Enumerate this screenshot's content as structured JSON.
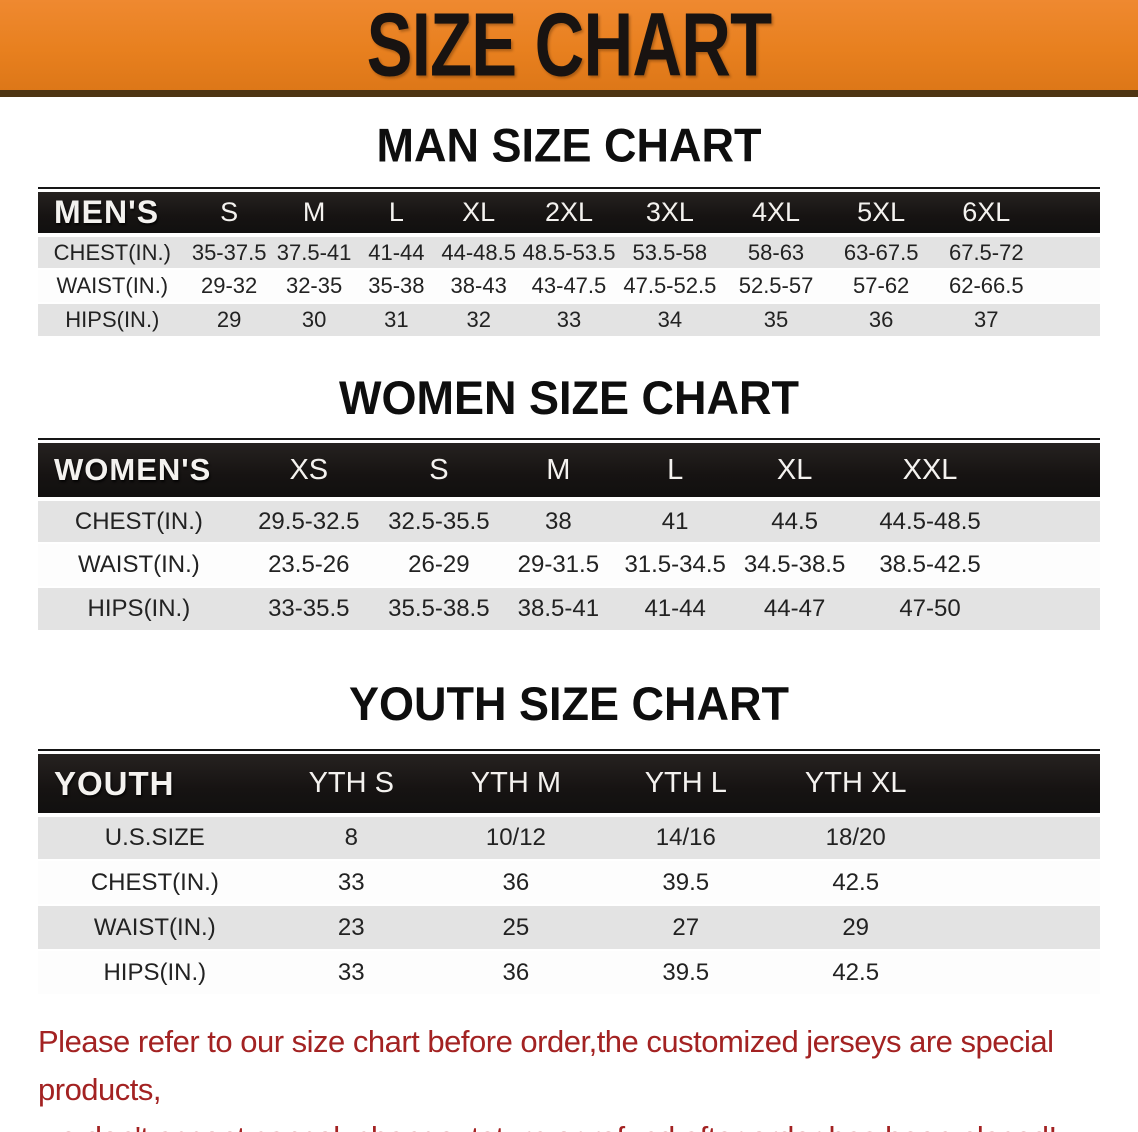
{
  "banner": {
    "title": "SIZE CHART",
    "bg_color": "#e8801f",
    "text_color": "#181311"
  },
  "sections": [
    {
      "heading": "MAN SIZE CHART",
      "header_label": "MEN'S",
      "columns": [
        "S",
        "M",
        "L",
        "XL",
        "2XL",
        "3XL",
        "4XL",
        "5XL",
        "6XL"
      ],
      "rows": [
        {
          "label": "CHEST(IN.)",
          "values": [
            "35-37.5",
            "37.5-41",
            "41-44",
            "44-48.5",
            "48.5-53.5",
            "53.5-58",
            "58-63",
            "63-67.5",
            "67.5-72"
          ]
        },
        {
          "label": "WAIST(IN.)",
          "values": [
            "29-32",
            "32-35",
            "35-38",
            "38-43",
            "43-47.5",
            "47.5-52.5",
            "52.5-57",
            "57-62",
            "62-66.5"
          ]
        },
        {
          "label": "HIPS(IN.)",
          "values": [
            "29",
            "30",
            "31",
            "32",
            "33",
            "34",
            "35",
            "36",
            "37"
          ]
        }
      ]
    },
    {
      "heading": "WOMEN SIZE CHART",
      "header_label": "WOMEN'S",
      "columns": [
        "XS",
        "S",
        "M",
        "L",
        "XL",
        "XXL"
      ],
      "rows": [
        {
          "label": "CHEST(IN.)",
          "values": [
            "29.5-32.5",
            "32.5-35.5",
            "38",
            "41",
            "44.5",
            "44.5-48.5"
          ]
        },
        {
          "label": "WAIST(IN.)",
          "values": [
            "23.5-26",
            "26-29",
            "29-31.5",
            "31.5-34.5",
            "34.5-38.5",
            "38.5-42.5"
          ]
        },
        {
          "label": "HIPS(IN.)",
          "values": [
            "33-35.5",
            "35.5-38.5",
            "38.5-41",
            "41-44",
            "44-47",
            "47-50"
          ]
        }
      ]
    },
    {
      "heading": "YOUTH SIZE CHART",
      "header_label": "YOUTH",
      "columns": [
        "YTH S",
        "YTH M",
        "YTH L",
        "YTH XL"
      ],
      "rows": [
        {
          "label": "U.S.SIZE",
          "values": [
            "8",
            "10/12",
            "14/16",
            "18/20"
          ]
        },
        {
          "label": "CHEST(IN.)",
          "values": [
            "33",
            "36",
            "39.5",
            "42.5"
          ]
        },
        {
          "label": "WAIST(IN.)",
          "values": [
            "23",
            "25",
            "27",
            "29"
          ]
        },
        {
          "label": "HIPS(IN.)",
          "values": [
            "33",
            "36",
            "39.5",
            "42.5"
          ]
        }
      ]
    }
  ],
  "footer": {
    "line1": "Please refer to our size chart before order,the customized jerseys are special products,",
    "line2": "we don't accept cancel, change, teturn or refund after order has been placed!",
    "text_color": "#a32222"
  }
}
